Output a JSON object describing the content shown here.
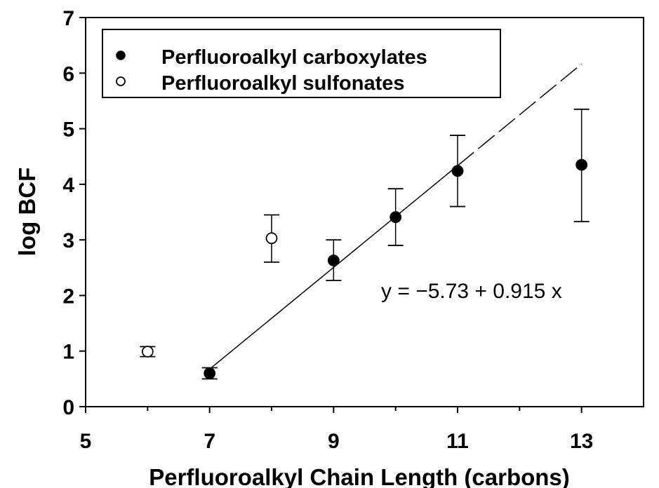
{
  "chart_data": {
    "type": "scatter",
    "xlabel": "Perfluoroalkyl Chain Length (carbons)",
    "ylabel": "log BCF",
    "xlim": [
      5,
      14
    ],
    "ylim": [
      0,
      7
    ],
    "x_ticks": [
      5,
      7,
      9,
      11,
      13
    ],
    "y_ticks": [
      0,
      1,
      2,
      3,
      4,
      5,
      6,
      7
    ],
    "grid": false,
    "legend_position": "top-left",
    "series": [
      {
        "name": "Perfluoroalkyl carboxylates",
        "marker": "filled-circle",
        "color": "#000000",
        "points": [
          {
            "x": 7,
            "y": 0.6,
            "err_low": 0.5,
            "err_high": 0.7
          },
          {
            "x": 9,
            "y": 2.63,
            "err_low": 2.27,
            "err_high": 3.0
          },
          {
            "x": 10,
            "y": 3.41,
            "err_low": 2.9,
            "err_high": 3.92
          },
          {
            "x": 11,
            "y": 4.24,
            "err_low": 3.6,
            "err_high": 4.88
          },
          {
            "x": 13,
            "y": 4.35,
            "err_low": 3.33,
            "err_high": 5.35
          }
        ]
      },
      {
        "name": "Perfluoroalkyl sulfonates",
        "marker": "open-circle",
        "color": "#000000",
        "points": [
          {
            "x": 6,
            "y": 0.99,
            "err_low": 0.9,
            "err_high": 1.08
          },
          {
            "x": 8,
            "y": 3.03,
            "err_low": 2.6,
            "err_high": 3.45
          }
        ]
      }
    ],
    "regression": {
      "equation": "y = −5.73 + 0.915 x",
      "intercept": -5.73,
      "slope": 0.915,
      "solid_from_x": 7,
      "solid_to_x": 11,
      "dashed_to_x": 13
    }
  }
}
